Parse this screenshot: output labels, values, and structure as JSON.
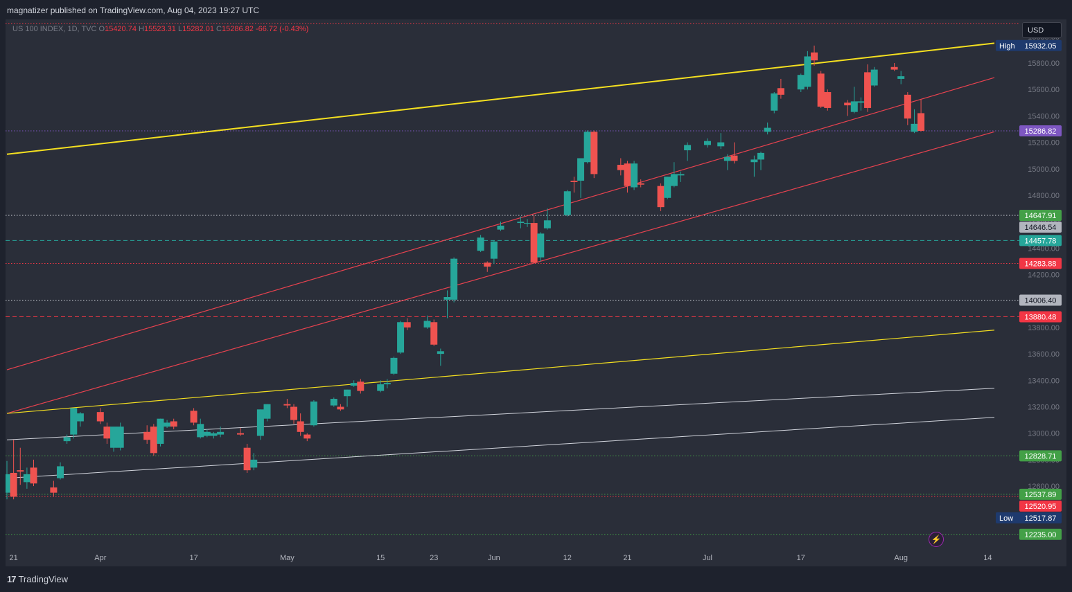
{
  "header": {
    "publisher": "magnatizer published on TradingView.com, Aug 04, 2023 19:27 UTC"
  },
  "ohlc": {
    "symbol": "US 100 INDEX, 1D, TVC",
    "o_label": "O",
    "open": "15420.74",
    "h_label": "H",
    "high": "15523.31",
    "l_label": "L",
    "low": "15282.01",
    "c_label": "C",
    "close": "15286.82",
    "change": "-66.72 (-0.43%)"
  },
  "currency_button": "USD",
  "branding": {
    "logo_mark": "17",
    "logo_text": "TradingView"
  },
  "icons": {
    "quick_action": "lightning-bolt-icon"
  },
  "colors": {
    "up": "#26a69a",
    "down": "#ef5350",
    "yellow_line": "#f5e020",
    "red_line": "#e8424f",
    "white_line": "#d1d4dc",
    "accent_purple": "#7e57c2"
  },
  "chart_data": {
    "type": "candlestick",
    "ylim": [
      12150,
      16130
    ],
    "xlim": [
      "2023-03-20",
      "2023-08-15"
    ],
    "x_ticks": [
      {
        "label": "21",
        "date": "2023-03-21"
      },
      {
        "label": "Apr",
        "date": "2023-04-03"
      },
      {
        "label": "17",
        "date": "2023-04-17"
      },
      {
        "label": "May",
        "date": "2023-05-01"
      },
      {
        "label": "15",
        "date": "2023-05-15"
      },
      {
        "label": "23",
        "date": "2023-05-23"
      },
      {
        "label": "Jun",
        "date": "2023-06-01"
      },
      {
        "label": "12",
        "date": "2023-06-12"
      },
      {
        "label": "21",
        "date": "2023-06-21"
      },
      {
        "label": "Jul",
        "date": "2023-07-03"
      },
      {
        "label": "17",
        "date": "2023-07-17"
      },
      {
        "label": "Aug",
        "date": "2023-08-01"
      },
      {
        "label": "14",
        "date": "2023-08-14"
      }
    ],
    "y_ticks": [
      "12600.00",
      "12800.00",
      "13000.00",
      "13200.00",
      "13400.00",
      "13600.00",
      "13800.00",
      "14000.00",
      "14200.00",
      "14400.00",
      "14600.00",
      "14800.00",
      "15000.00",
      "15200.00",
      "15400.00",
      "15600.00",
      "15800.00",
      "16000.00"
    ],
    "candles": [
      {
        "d": "2023-03-20",
        "o": 12550,
        "h": 12790,
        "l": 12500,
        "c": 12690
      },
      {
        "d": "2023-03-21",
        "o": 12700,
        "h": 12950,
        "l": 12500,
        "c": 12520
      },
      {
        "d": "2023-03-22",
        "o": 12720,
        "h": 12890,
        "l": 12610,
        "c": 12710
      },
      {
        "d": "2023-03-23",
        "o": 12630,
        "h": 12740,
        "l": 12580,
        "c": 12690
      },
      {
        "d": "2023-03-24",
        "o": 12740,
        "h": 12800,
        "l": 12600,
        "c": 12620
      },
      {
        "d": "2023-03-27",
        "o": 12590,
        "h": 12640,
        "l": 12520,
        "c": 12550
      },
      {
        "d": "2023-03-28",
        "o": 12660,
        "h": 12780,
        "l": 12650,
        "c": 12750
      },
      {
        "d": "2023-03-29",
        "o": 12940,
        "h": 12990,
        "l": 12920,
        "c": 12970
      },
      {
        "d": "2023-03-30",
        "o": 12990,
        "h": 13170,
        "l": 12960,
        "c": 13190
      },
      {
        "d": "2023-03-31",
        "o": 13090,
        "h": 13160,
        "l": 13050,
        "c": 13150
      },
      {
        "d": "2023-04-03",
        "o": 13160,
        "h": 13190,
        "l": 13070,
        "c": 13090
      },
      {
        "d": "2023-04-04",
        "o": 13050,
        "h": 13080,
        "l": 12920,
        "c": 12960
      },
      {
        "d": "2023-04-05",
        "o": 12890,
        "h": 13040,
        "l": 12860,
        "c": 13050
      },
      {
        "d": "2023-04-06",
        "o": 12890,
        "h": 13080,
        "l": 12870,
        "c": 13050
      },
      {
        "d": "2023-04-10",
        "o": 13010,
        "h": 13060,
        "l": 12920,
        "c": 12950
      },
      {
        "d": "2023-04-11",
        "o": 13050,
        "h": 13070,
        "l": 12830,
        "c": 12850
      },
      {
        "d": "2023-04-12",
        "o": 12920,
        "h": 13110,
        "l": 12900,
        "c": 13110
      },
      {
        "d": "2023-04-13",
        "o": 13050,
        "h": 13100,
        "l": 13040,
        "c": 13080
      },
      {
        "d": "2023-04-14",
        "o": 13090,
        "h": 13110,
        "l": 13030,
        "c": 13050
      },
      {
        "d": "2023-04-17",
        "o": 13170,
        "h": 13190,
        "l": 13060,
        "c": 13080
      },
      {
        "d": "2023-04-18",
        "o": 12970,
        "h": 13110,
        "l": 12960,
        "c": 13070
      },
      {
        "d": "2023-04-19",
        "o": 12980,
        "h": 13030,
        "l": 12970,
        "c": 13010
      },
      {
        "d": "2023-04-20",
        "o": 12980,
        "h": 13010,
        "l": 12960,
        "c": 13000
      },
      {
        "d": "2023-04-21",
        "o": 12990,
        "h": 13050,
        "l": 12970,
        "c": 13010
      },
      {
        "d": "2023-04-24",
        "o": 13000,
        "h": 13040,
        "l": 12980,
        "c": 12990
      },
      {
        "d": "2023-04-25",
        "o": 12890,
        "h": 12920,
        "l": 12700,
        "c": 12720
      },
      {
        "d": "2023-04-26",
        "o": 12740,
        "h": 12850,
        "l": 12720,
        "c": 12800
      },
      {
        "d": "2023-04-27",
        "o": 12980,
        "h": 13180,
        "l": 12950,
        "c": 13180
      },
      {
        "d": "2023-04-28",
        "o": 13110,
        "h": 13220,
        "l": 13090,
        "c": 13220
      },
      {
        "d": "2023-05-01",
        "o": 13220,
        "h": 13260,
        "l": 13190,
        "c": 13210
      },
      {
        "d": "2023-05-02",
        "o": 13200,
        "h": 13220,
        "l": 13070,
        "c": 13100
      },
      {
        "d": "2023-05-03",
        "o": 13090,
        "h": 13150,
        "l": 12980,
        "c": 13010
      },
      {
        "d": "2023-05-04",
        "o": 12990,
        "h": 13000,
        "l": 12940,
        "c": 12960
      },
      {
        "d": "2023-05-05",
        "o": 13060,
        "h": 13250,
        "l": 13050,
        "c": 13240
      },
      {
        "d": "2023-05-08",
        "o": 13210,
        "h": 13270,
        "l": 13200,
        "c": 13260
      },
      {
        "d": "2023-05-09",
        "o": 13200,
        "h": 13220,
        "l": 13170,
        "c": 13180
      },
      {
        "d": "2023-05-10",
        "o": 13280,
        "h": 13330,
        "l": 13200,
        "c": 13330
      },
      {
        "d": "2023-05-11",
        "o": 13360,
        "h": 13400,
        "l": 13350,
        "c": 13380
      },
      {
        "d": "2023-05-12",
        "o": 13390,
        "h": 13410,
        "l": 13300,
        "c": 13320
      },
      {
        "d": "2023-05-15",
        "o": 13320,
        "h": 13400,
        "l": 13310,
        "c": 13370
      },
      {
        "d": "2023-05-16",
        "o": 13370,
        "h": 13410,
        "l": 13340,
        "c": 13380
      },
      {
        "d": "2023-05-17",
        "o": 13450,
        "h": 13580,
        "l": 13440,
        "c": 13570
      },
      {
        "d": "2023-05-18",
        "o": 13610,
        "h": 13850,
        "l": 13600,
        "c": 13840
      },
      {
        "d": "2023-05-19",
        "o": 13840,
        "h": 13870,
        "l": 13780,
        "c": 13800
      },
      {
        "d": "2023-05-22",
        "o": 13800,
        "h": 13890,
        "l": 13790,
        "c": 13850
      },
      {
        "d": "2023-05-23",
        "o": 13840,
        "h": 13860,
        "l": 13660,
        "c": 13670
      },
      {
        "d": "2023-05-24",
        "o": 13600,
        "h": 13640,
        "l": 13510,
        "c": 13620
      },
      {
        "d": "2023-05-25",
        "o": 14010,
        "h": 14080,
        "l": 13870,
        "c": 14030
      },
      {
        "d": "2023-05-26",
        "o": 14010,
        "h": 14330,
        "l": 13990,
        "c": 14320
      },
      {
        "d": "2023-05-30",
        "o": 14380,
        "h": 14500,
        "l": 14370,
        "c": 14480
      },
      {
        "d": "2023-05-31",
        "o": 14290,
        "h": 14300,
        "l": 14220,
        "c": 14260
      },
      {
        "d": "2023-06-01",
        "o": 14320,
        "h": 14460,
        "l": 14280,
        "c": 14450
      },
      {
        "d": "2023-06-02",
        "o": 14540,
        "h": 14600,
        "l": 14530,
        "c": 14570
      },
      {
        "d": "2023-06-05",
        "o": 14590,
        "h": 14640,
        "l": 14550,
        "c": 14600
      },
      {
        "d": "2023-06-06",
        "o": 14590,
        "h": 14620,
        "l": 14560,
        "c": 14590
      },
      {
        "d": "2023-06-07",
        "o": 14590,
        "h": 14650,
        "l": 14290,
        "c": 14290
      },
      {
        "d": "2023-06-08",
        "o": 14330,
        "h": 14520,
        "l": 14300,
        "c": 14510
      },
      {
        "d": "2023-06-09",
        "o": 14550,
        "h": 14700,
        "l": 14540,
        "c": 14610
      },
      {
        "d": "2023-06-12",
        "o": 14650,
        "h": 14840,
        "l": 14640,
        "c": 14830
      },
      {
        "d": "2023-06-13",
        "o": 14910,
        "h": 14940,
        "l": 14820,
        "c": 14900
      },
      {
        "d": "2023-06-14",
        "o": 14910,
        "h": 15080,
        "l": 14780,
        "c": 15080
      },
      {
        "d": "2023-06-15",
        "o": 15050,
        "h": 15290,
        "l": 15040,
        "c": 15280
      },
      {
        "d": "2023-06-16",
        "o": 15280,
        "h": 15290,
        "l": 14930,
        "c": 14960
      },
      {
        "d": "2023-06-20",
        "o": 15030,
        "h": 15080,
        "l": 14950,
        "c": 14990
      },
      {
        "d": "2023-06-21",
        "o": 15040,
        "h": 15060,
        "l": 14820,
        "c": 14870
      },
      {
        "d": "2023-06-22",
        "o": 14860,
        "h": 15060,
        "l": 14840,
        "c": 15040
      },
      {
        "d": "2023-06-23",
        "o": 14890,
        "h": 14920,
        "l": 14860,
        "c": 14880
      },
      {
        "d": "2023-06-26",
        "o": 14870,
        "h": 14890,
        "l": 14680,
        "c": 14710
      },
      {
        "d": "2023-06-27",
        "o": 14780,
        "h": 14940,
        "l": 14770,
        "c": 14940
      },
      {
        "d": "2023-06-28",
        "o": 14870,
        "h": 15050,
        "l": 14860,
        "c": 14960
      },
      {
        "d": "2023-06-29",
        "o": 14950,
        "h": 14980,
        "l": 14900,
        "c": 14960
      },
      {
        "d": "2023-06-30",
        "o": 15140,
        "h": 15200,
        "l": 15060,
        "c": 15180
      },
      {
        "d": "2023-07-03",
        "o": 15180,
        "h": 15230,
        "l": 15160,
        "c": 15210
      },
      {
        "d": "2023-07-05",
        "o": 15170,
        "h": 15270,
        "l": 15150,
        "c": 15200
      },
      {
        "d": "2023-07-06",
        "o": 15060,
        "h": 15110,
        "l": 14990,
        "c": 15090
      },
      {
        "d": "2023-07-07",
        "o": 15100,
        "h": 15200,
        "l": 15040,
        "c": 15060
      },
      {
        "d": "2023-07-10",
        "o": 15050,
        "h": 15100,
        "l": 14940,
        "c": 15070
      },
      {
        "d": "2023-07-11",
        "o": 15070,
        "h": 15130,
        "l": 14990,
        "c": 15120
      },
      {
        "d": "2023-07-12",
        "o": 15280,
        "h": 15350,
        "l": 15260,
        "c": 15310
      },
      {
        "d": "2023-07-13",
        "o": 15440,
        "h": 15580,
        "l": 15420,
        "c": 15570
      },
      {
        "d": "2023-07-14",
        "o": 15610,
        "h": 15680,
        "l": 15530,
        "c": 15560
      },
      {
        "d": "2023-07-17",
        "o": 15600,
        "h": 15720,
        "l": 15580,
        "c": 15710
      },
      {
        "d": "2023-07-18",
        "o": 15620,
        "h": 15890,
        "l": 15600,
        "c": 15850
      },
      {
        "d": "2023-07-19",
        "o": 15880,
        "h": 15932,
        "l": 15780,
        "c": 15820
      },
      {
        "d": "2023-07-20",
        "o": 15720,
        "h": 15740,
        "l": 15460,
        "c": 15470
      },
      {
        "d": "2023-07-21",
        "o": 15580,
        "h": 15600,
        "l": 15440,
        "c": 15460
      },
      {
        "d": "2023-07-24",
        "o": 15500,
        "h": 15520,
        "l": 15400,
        "c": 15480
      },
      {
        "d": "2023-07-25",
        "o": 15430,
        "h": 15620,
        "l": 15420,
        "c": 15510
      },
      {
        "d": "2023-07-26",
        "o": 15500,
        "h": 15540,
        "l": 15440,
        "c": 15510
      },
      {
        "d": "2023-07-27",
        "o": 15730,
        "h": 15790,
        "l": 15430,
        "c": 15460
      },
      {
        "d": "2023-07-28",
        "o": 15630,
        "h": 15770,
        "l": 15620,
        "c": 15750
      },
      {
        "d": "2023-07-31",
        "o": 15770,
        "h": 15800,
        "l": 15740,
        "c": 15750
      },
      {
        "d": "2023-08-01",
        "o": 15680,
        "h": 15740,
        "l": 15640,
        "c": 15700
      },
      {
        "d": "2023-08-02",
        "o": 15560,
        "h": 15580,
        "l": 15330,
        "c": 15380
      },
      {
        "d": "2023-08-03",
        "o": 15280,
        "h": 15450,
        "l": 15270,
        "c": 15340
      },
      {
        "d": "2023-08-04",
        "o": 15420.74,
        "h": 15523.31,
        "l": 15282.01,
        "c": 15286.82
      }
    ],
    "trend_lines": [
      {
        "name": "yellow-upper-trendline",
        "color": "#f5e020",
        "width": 2,
        "p1": [
          "2023-03-20",
          15110
        ],
        "p2": [
          "2023-08-15",
          15950
        ]
      },
      {
        "name": "red-upper-trendline",
        "color": "#e8424f",
        "width": 1.2,
        "p1": [
          "2023-03-20",
          13480
        ],
        "p2": [
          "2023-08-15",
          15690
        ]
      },
      {
        "name": "red-lower-trendline",
        "color": "#e8424f",
        "width": 1.2,
        "p1": [
          "2023-03-20",
          13150
        ],
        "p2": [
          "2023-08-15",
          15280
        ]
      },
      {
        "name": "yellow-lower-trendline",
        "color": "#f5e020",
        "width": 1.2,
        "p1": [
          "2023-03-20",
          13150
        ],
        "p2": [
          "2023-08-15",
          13780
        ]
      },
      {
        "name": "white-upper-trendline",
        "color": "#d1d4dc",
        "width": 1,
        "p1": [
          "2023-03-20",
          12950
        ],
        "p2": [
          "2023-08-15",
          13340
        ]
      },
      {
        "name": "white-lower-trendline",
        "color": "#d1d4dc",
        "width": 1,
        "p1": [
          "2023-03-20",
          12660
        ],
        "p2": [
          "2023-08-15",
          13120
        ]
      }
    ],
    "hlines": [
      {
        "value": 15286.82,
        "color": "#7e57c2",
        "style": "dotted",
        "label": "15286.82",
        "label_bg": "#7e57c2",
        "label_color": "#ffffff"
      },
      {
        "value": 14647.91,
        "color": "#d1d4dc",
        "style": "dotted",
        "label": "14647.91",
        "label_bg": "#43a047",
        "label_color": "#ffffff"
      },
      {
        "value": 14646.54,
        "color": "",
        "style": "none",
        "label": "14646.54",
        "label_bg": "#b2b5be",
        "label_color": "#131722"
      },
      {
        "value": 14457.78,
        "color": "#26a69a",
        "style": "dashed",
        "label": "14457.78",
        "label_bg": "#26a69a",
        "label_color": "#ffffff"
      },
      {
        "value": 14283.88,
        "color": "#f23645",
        "style": "dotted",
        "label": "14283.88",
        "label_bg": "#f23645",
        "label_color": "#ffffff"
      },
      {
        "value": 14006.4,
        "color": "#d1d4dc",
        "style": "dotted",
        "label": "14006.40",
        "label_bg": "#b2b5be",
        "label_color": "#131722"
      },
      {
        "value": 13880.48,
        "color": "#f23645",
        "style": "dashed",
        "label": "13880.48",
        "label_bg": "#f23645",
        "label_color": "#ffffff"
      },
      {
        "value": 12828.71,
        "color": "#43a047",
        "style": "dotted",
        "label": "12828.71",
        "label_bg": "#43a047",
        "label_color": "#ffffff"
      },
      {
        "value": 12537.89,
        "color": "#43a047",
        "style": "dotted",
        "label": "12537.89",
        "label_bg": "#43a047",
        "label_color": "#ffffff"
      },
      {
        "value": 12520.95,
        "color": "#f23645",
        "style": "dotted",
        "label": "12520.95",
        "label_bg": "#f23645",
        "label_color": "#ffffff"
      },
      {
        "value": 12235.0,
        "color": "#43a047",
        "style": "dotted",
        "label": "12235.00",
        "label_bg": "#43a047",
        "label_color": "#ffffff"
      },
      {
        "value": 16100,
        "color": "#f23645",
        "style": "dotted",
        "label": "",
        "label_bg": "",
        "label_color": ""
      }
    ],
    "markers": [
      {
        "name": "high-marker",
        "tag": "High",
        "value_label": "15932.05",
        "value": 15932.05
      },
      {
        "name": "low-marker",
        "tag": "Low",
        "value_label": "12517.87",
        "value": 12517.87
      }
    ]
  }
}
